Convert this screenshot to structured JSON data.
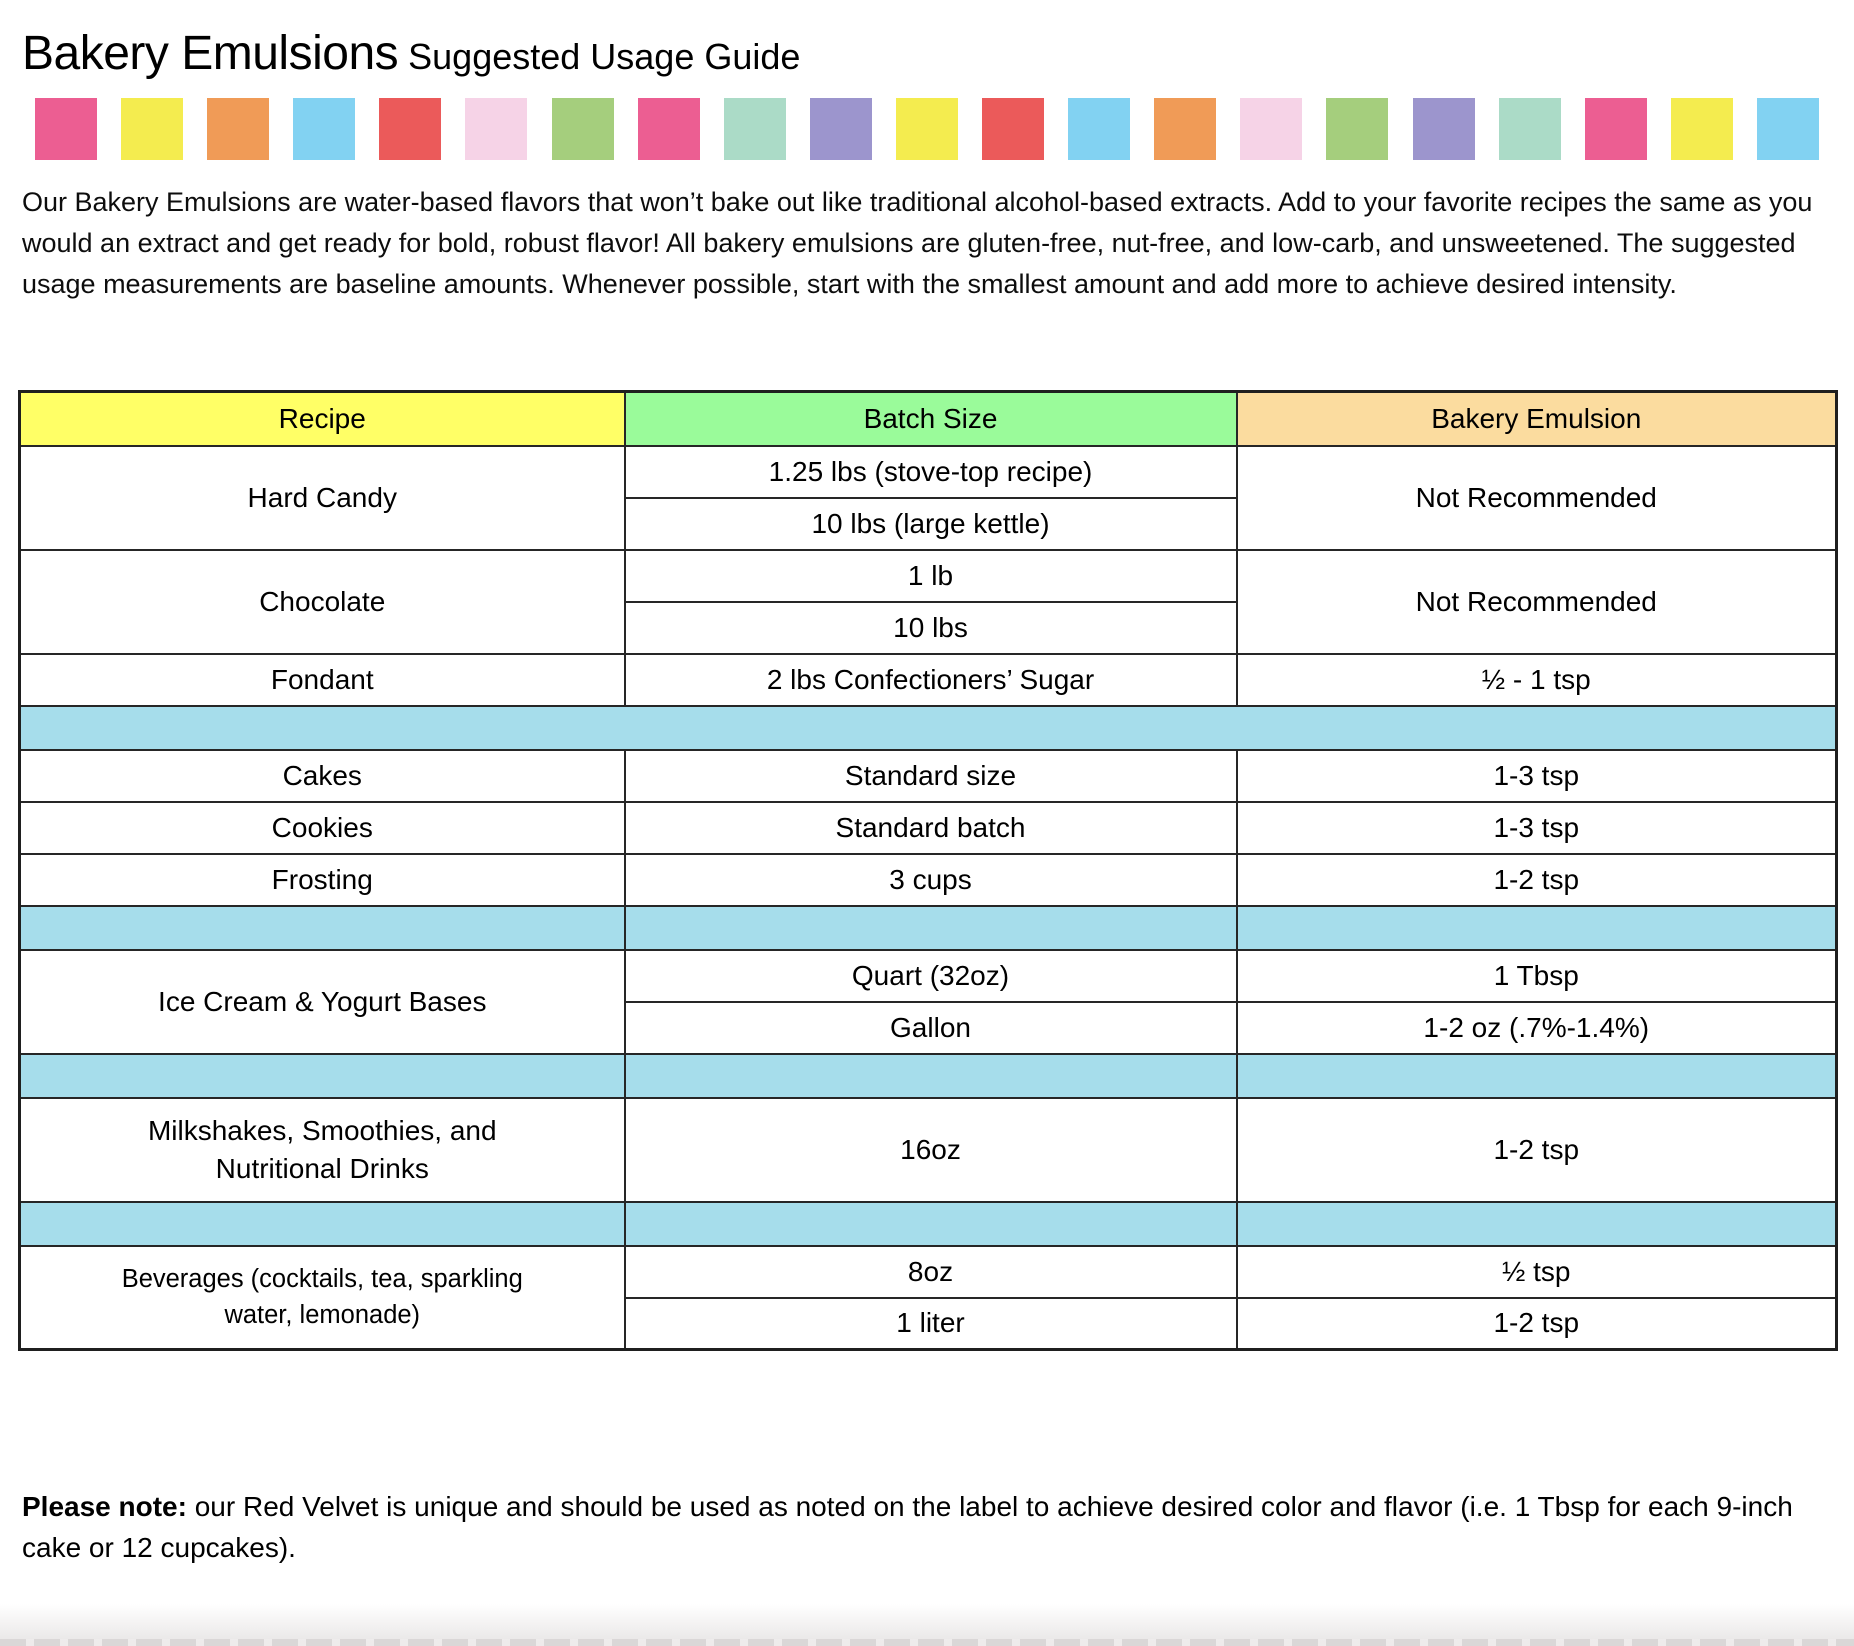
{
  "page": {
    "title": {
      "main": "Bakery Emulsions",
      "sub": "Suggested Usage Guide"
    },
    "intro": "Our Bakery Emulsions are water-based flavors that won’t bake out like traditional alcohol-based extracts. Add to your favorite recipes the same as you would an extract and get ready for bold, robust flavor! All bakery emulsions are gluten-free, nut-free, and low-carb, and unsweetened. The suggested usage measurements are baseline amounts. Whenever possible, start with the smallest amount and add more to achieve desired intensity.",
    "note": {
      "label": "Please note:",
      "text": " our Red Velvet is unique and should be used as noted on the label to achieve desired color and flavor (i.e. 1 Tbsp for each 9-inch cake or 12 cupcakes)."
    }
  },
  "colors": {
    "header_recipe": "#FFFF66",
    "header_batch_size": "#9AFB9A",
    "header_bakery_emulsion": "#FBDC9F",
    "separator": "#A6DDEB",
    "strip": [
      "#EC5E92",
      "#F4EC4F",
      "#F09B57",
      "#82D2F2",
      "#EB5A5A",
      "#F6D3E7",
      "#A5CE7D",
      "#EC5E92",
      "#ABDBC7",
      "#9C95CD",
      "#F4EC4F",
      "#EB5A5A",
      "#82D2F2",
      "#F09B57",
      "#F6D3E7",
      "#A5CE7D",
      "#9C95CD",
      "#ABDBC7",
      "#EC5E92",
      "#F4EC4F",
      "#82D2F2"
    ]
  },
  "table": {
    "headers": {
      "recipe": "Recipe",
      "batch_size": "Batch Size",
      "bakery_emulsion": "Bakery Emulsion"
    },
    "rows": {
      "hard_candy": {
        "recipe": "Hard Candy",
        "batch_1": "1.25 lbs (stove-top recipe)",
        "batch_2": "10 lbs (large kettle)",
        "emulsion": "Not Recommended"
      },
      "chocolate": {
        "recipe": "Chocolate",
        "batch_1": "1 lb",
        "batch_2": "10 lbs",
        "emulsion": "Not Recommended"
      },
      "fondant": {
        "recipe": "Fondant",
        "batch": "2 lbs Confectioners’ Sugar",
        "emulsion": "½ - 1 tsp"
      },
      "cakes": {
        "recipe": "Cakes",
        "batch": "Standard size",
        "emulsion": "1-3 tsp"
      },
      "cookies": {
        "recipe": "Cookies",
        "batch": "Standard batch",
        "emulsion": "1-3 tsp"
      },
      "frosting": {
        "recipe": "Frosting",
        "batch": "3 cups",
        "emulsion": "1-2 tsp"
      },
      "ice_cream_yogurt": {
        "recipe": "Ice Cream & Yogurt Bases",
        "batch_1": "Quart (32oz)",
        "emulsion_1": "1 Tbsp",
        "batch_2": "Gallon",
        "emulsion_2": "1-2 oz (.7%-1.4%)"
      },
      "milkshakes": {
        "recipe": "Milkshakes, Smoothies, and Nutritional Drinks",
        "batch": "16oz",
        "emulsion": "1-2 tsp"
      },
      "beverages": {
        "recipe": "Beverages (cocktails, tea, sparkling water, lemonade)",
        "batch_1": "8oz",
        "emulsion_1": "½ tsp",
        "batch_2": "1 liter",
        "emulsion_2": "1-2 tsp"
      }
    }
  }
}
